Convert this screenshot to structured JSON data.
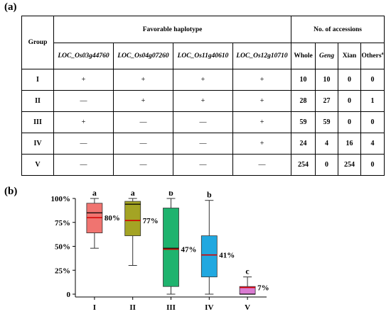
{
  "panel_a_label": "(a)",
  "panel_b_label": "(b)",
  "table": {
    "group_header": "Group",
    "favorable_header": "Favorable haplotype",
    "accessions_header": "No. of accessions",
    "genes": [
      "LOC_Os03g44760",
      "LOC_Os04g07260",
      "LOC_Os11g40610",
      "LOC_Os12g10710"
    ],
    "accession_cols": {
      "whole": "Whole",
      "geng": "Geng",
      "xian": "Xian",
      "others": "Others",
      "others_sup": "a"
    },
    "rows": [
      {
        "group": "I",
        "hap": [
          "+",
          "+",
          "+",
          "+"
        ],
        "whole": "10",
        "geng": "10",
        "xian": "0",
        "others": "0"
      },
      {
        "group": "II",
        "hap": [
          "—",
          "+",
          "+",
          "+"
        ],
        "whole": "28",
        "geng": "27",
        "xian": "0",
        "others": "1"
      },
      {
        "group": "III",
        "hap": [
          "+",
          "—",
          "—",
          "+"
        ],
        "whole": "59",
        "geng": "59",
        "xian": "0",
        "others": "0"
      },
      {
        "group": "IV",
        "hap": [
          "—",
          "—",
          "—",
          "+"
        ],
        "whole": "24",
        "geng": "4",
        "xian": "16",
        "others": "4"
      },
      {
        "group": "V",
        "hap": [
          "—",
          "—",
          "—",
          "—"
        ],
        "whole": "254",
        "geng": "0",
        "xian": "254",
        "others": "0"
      }
    ]
  },
  "chart_data": {
    "type": "box",
    "categories": [
      "I",
      "II",
      "III",
      "IV",
      "V"
    ],
    "y_ticks": [
      "0",
      "25%",
      "50%",
      "75%",
      "100%"
    ],
    "ylim": [
      0,
      100
    ],
    "boxes": [
      {
        "category": "I",
        "min": 48,
        "q1": 64,
        "median": 85,
        "mean": 80,
        "q3": 95,
        "max": 100,
        "color": "#f07470",
        "letter": "a",
        "mean_label": "80%"
      },
      {
        "category": "II",
        "min": 30,
        "q1": 61,
        "median": 94,
        "mean": 77,
        "q3": 97,
        "max": 100,
        "color": "#a4a424",
        "letter": "a",
        "mean_label": "77%"
      },
      {
        "category": "III",
        "min": 0,
        "q1": 8,
        "median": 48,
        "mean": 47,
        "q3": 90,
        "max": 100,
        "color": "#1fb36e",
        "letter": "b",
        "mean_label": "47%"
      },
      {
        "category": "IV",
        "min": 0,
        "q1": 18,
        "median": 41,
        "mean": 41,
        "q3": 61,
        "max": 98,
        "color": "#21a8e0",
        "letter": "b",
        "mean_label": "41%"
      },
      {
        "category": "V",
        "min": 0,
        "q1": 0,
        "median": 0,
        "mean": 7,
        "q3": 8,
        "max": 18,
        "color": "#d97bd1",
        "letter": "c",
        "mean_label": "7%"
      }
    ],
    "mean_line_color": "#d40000",
    "median_line_color": "#000000"
  }
}
